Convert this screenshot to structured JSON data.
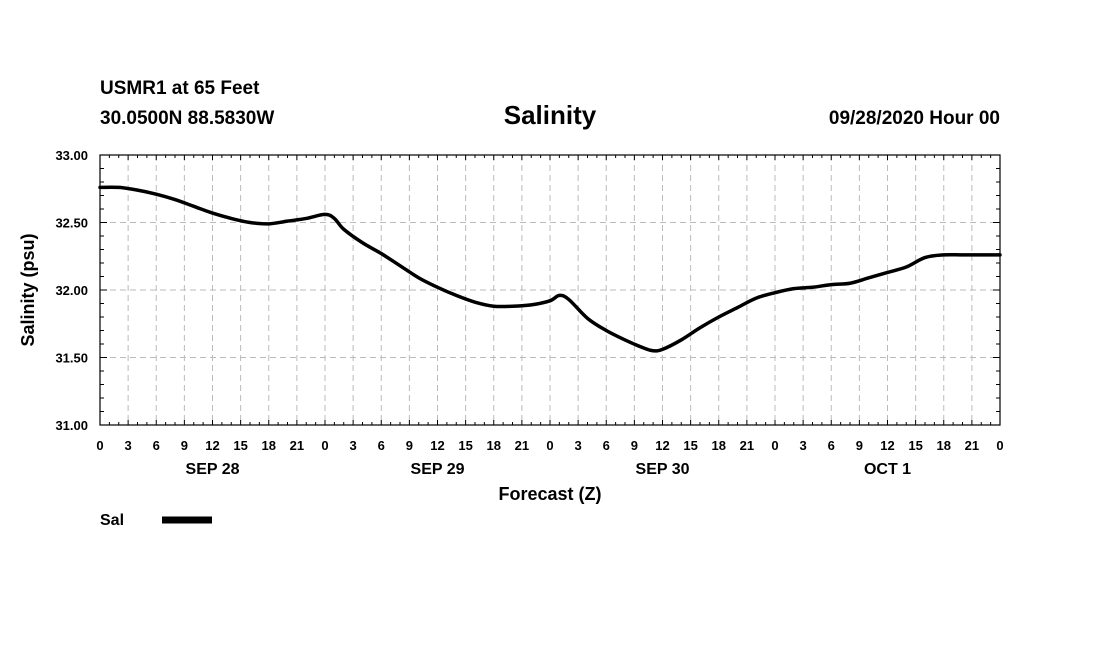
{
  "header": {
    "station": "USMR1 at 65 Feet",
    "location": "30.0500N 88.5830W",
    "title": "Salinity",
    "run": "09/28/2020 Hour 00"
  },
  "chart_data": {
    "type": "line",
    "title": "Salinity",
    "xlabel": "Forecast (Z)",
    "ylabel": "Salinity (psu)",
    "ylim": [
      31.0,
      33.0
    ],
    "yticks": [
      "31.00",
      "31.50",
      "32.00",
      "32.50",
      "33.00"
    ],
    "xlim_hours": [
      0,
      96
    ],
    "xtick_labels": [
      "0",
      "3",
      "6",
      "9",
      "12",
      "15",
      "18",
      "21",
      "0",
      "3",
      "6",
      "9",
      "12",
      "15",
      "18",
      "21",
      "0",
      "3",
      "6",
      "9",
      "12",
      "15",
      "18",
      "21",
      "0",
      "3",
      "6",
      "9",
      "12",
      "15",
      "18",
      "21",
      "0"
    ],
    "day_labels": [
      {
        "label": "SEP 28",
        "hour": 12
      },
      {
        "label": "SEP 29",
        "hour": 36
      },
      {
        "label": "SEP 30",
        "hour": 60
      },
      {
        "label": "OCT 1",
        "hour": 84
      }
    ],
    "grid": true,
    "legend_position": "bottom-left",
    "series": [
      {
        "name": "Sal",
        "color": "#000000",
        "x": [
          0,
          2,
          4,
          6,
          8,
          10,
          12,
          14,
          16,
          18,
          20,
          22,
          24,
          25,
          26,
          28,
          30,
          32,
          34,
          36,
          38,
          40,
          42,
          44,
          46,
          48,
          49,
          50,
          52,
          54,
          56,
          58,
          59,
          60,
          62,
          64,
          66,
          68,
          70,
          72,
          74,
          76,
          78,
          80,
          82,
          84,
          86,
          88,
          90,
          92,
          94,
          96
        ],
        "values": [
          32.76,
          32.76,
          32.74,
          32.71,
          32.67,
          32.62,
          32.57,
          32.53,
          32.5,
          32.49,
          32.51,
          32.53,
          32.56,
          32.53,
          32.45,
          32.35,
          32.27,
          32.18,
          32.09,
          32.02,
          31.96,
          31.91,
          31.88,
          31.88,
          31.89,
          31.92,
          31.96,
          31.93,
          31.79,
          31.7,
          31.63,
          31.57,
          31.55,
          31.56,
          31.63,
          31.72,
          31.8,
          31.87,
          31.94,
          31.98,
          32.01,
          32.02,
          32.04,
          32.05,
          32.09,
          32.13,
          32.17,
          32.24,
          32.26,
          32.26,
          32.26,
          32.26
        ]
      }
    ]
  }
}
